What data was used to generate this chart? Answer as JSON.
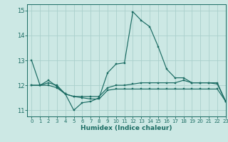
{
  "xlabel": "Humidex (Indice chaleur)",
  "xlim": [
    -0.5,
    23
  ],
  "ylim": [
    10.75,
    15.25
  ],
  "yticks": [
    11,
    12,
    13,
    14,
    15
  ],
  "xticks": [
    0,
    1,
    2,
    3,
    4,
    5,
    6,
    7,
    8,
    9,
    10,
    11,
    12,
    13,
    14,
    15,
    16,
    17,
    18,
    19,
    20,
    21,
    22,
    23
  ],
  "bg_color": "#cce8e4",
  "grid_color": "#aacfcc",
  "line_color": "#1a6b62",
  "line1_y": [
    13.0,
    12.0,
    12.0,
    11.9,
    11.65,
    11.0,
    11.3,
    11.35,
    11.5,
    12.5,
    12.85,
    12.9,
    14.95,
    14.6,
    14.35,
    13.55,
    12.65,
    12.3,
    12.3,
    12.1,
    12.1,
    12.1,
    12.1,
    11.35
  ],
  "line2_y": [
    12.0,
    12.0,
    12.1,
    12.0,
    11.65,
    11.55,
    11.55,
    11.55,
    11.55,
    11.9,
    12.0,
    12.0,
    12.05,
    12.1,
    12.1,
    12.1,
    12.1,
    12.1,
    12.2,
    12.1,
    12.1,
    12.1,
    12.05,
    11.35
  ],
  "line3_y": [
    12.0,
    12.0,
    12.2,
    11.95,
    11.65,
    11.55,
    11.5,
    11.45,
    11.45,
    11.8,
    11.85,
    11.85,
    11.85,
    11.85,
    11.85,
    11.85,
    11.85,
    11.85,
    11.85,
    11.85,
    11.85,
    11.85,
    11.85,
    11.35
  ]
}
